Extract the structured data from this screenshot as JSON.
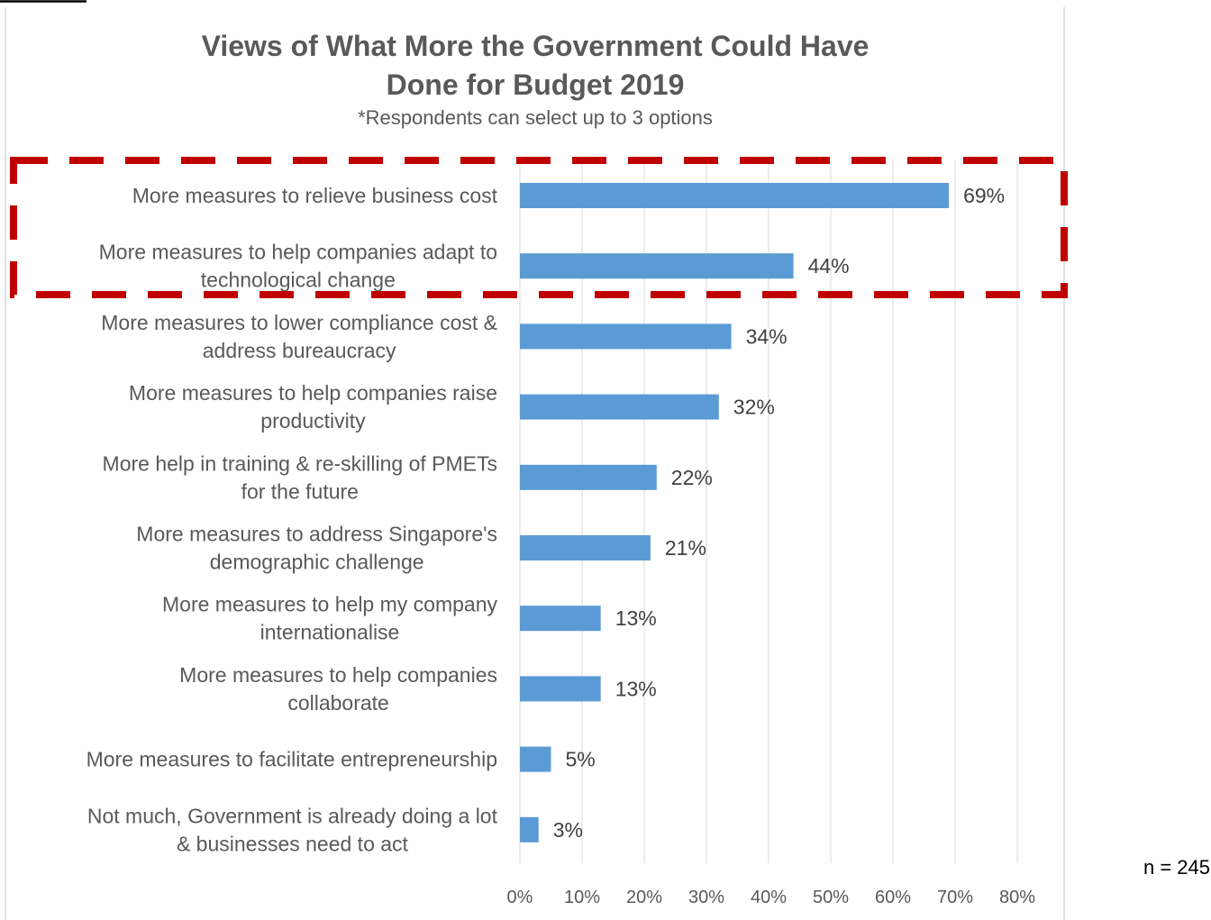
{
  "chart_data": {
    "type": "bar",
    "orientation": "horizontal",
    "title": "Views of What More the Government Could Have Done for Budget 2019",
    "title_lines": [
      "Views of What More the Government Could Have",
      "Done for Budget 2019"
    ],
    "subtitle": "*Respondents can select up to 3 options",
    "note": "n = 245",
    "categories": [
      "More measures to relieve business cost",
      "More measures to help companies adapt to technological change",
      "More measures to lower compliance cost & address bureaucracy",
      "More measures to help companies raise productivity",
      "More help in training & re-skilling of PMETs for the future",
      "More measures to address Singapore's demographic challenge",
      "More measures to help my company internationalise",
      "More measures to help companies collaborate",
      "More measures to facilitate entrepreneurship",
      "Not much, Government is already doing a lot & businesses need to act"
    ],
    "category_lines": [
      [
        "More measures to relieve business cost"
      ],
      [
        "More measures to help companies adapt to",
        "technological change"
      ],
      [
        "More measures to lower compliance cost &",
        "address bureaucracy"
      ],
      [
        "More measures to help companies raise",
        "productivity"
      ],
      [
        "More help in training & re-skilling of PMETs",
        "for the future"
      ],
      [
        "More measures to address Singapore's",
        "demographic challenge"
      ],
      [
        "More measures to help my company",
        "internationalise"
      ],
      [
        "More measures to help companies",
        "collaborate"
      ],
      [
        "More measures to facilitate entrepreneurship"
      ],
      [
        "Not much, Government is already doing a lot",
        "& businesses need to act"
      ]
    ],
    "values": [
      69,
      44,
      34,
      32,
      22,
      21,
      13,
      13,
      5,
      3
    ],
    "value_labels": [
      "69%",
      "44%",
      "34%",
      "32%",
      "22%",
      "21%",
      "13%",
      "13%",
      "5%",
      "3%"
    ],
    "x_ticks": [
      "0%",
      "10%",
      "20%",
      "30%",
      "40%",
      "50%",
      "60%",
      "70%",
      "80%"
    ],
    "xlim": [
      0,
      80
    ],
    "unit": "%",
    "grid": true,
    "bar_color": "#5b9bd5",
    "highlight": {
      "categories": [
        0,
        1
      ],
      "color": "#c00000",
      "style": "dashed"
    }
  }
}
